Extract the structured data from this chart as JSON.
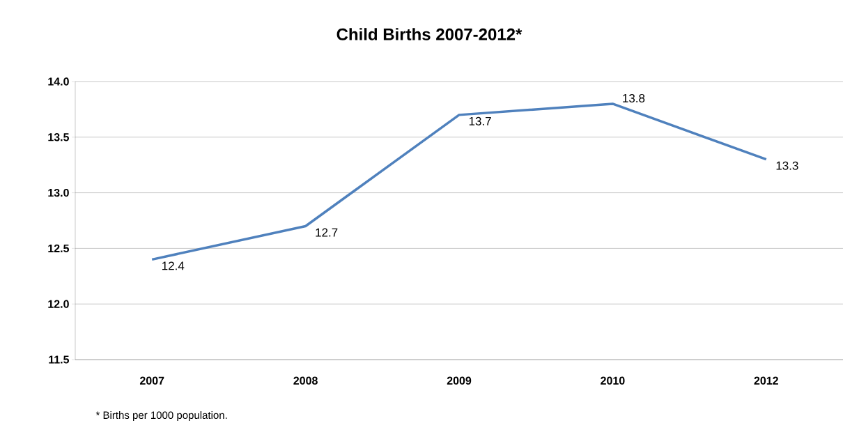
{
  "chart_data": {
    "type": "line",
    "title": "Child Births 2007-2012*",
    "categories": [
      "2007",
      "2008",
      "2009",
      "2010",
      "2012"
    ],
    "values": [
      12.4,
      12.7,
      13.7,
      13.8,
      13.3
    ],
    "color": "#4f81bd",
    "ylim": [
      11.5,
      14.0
    ],
    "yticks": [
      11.5,
      {
        "value": 12.0,
        "label": "12.0"
      },
      12.5,
      {
        "value": 13.0,
        "label": "13.0"
      },
      13.5,
      {
        "value": 14.0,
        "label": "14.0"
      }
    ],
    "grid": "y",
    "data_labels": true,
    "annotations": [
      "* Births per 1000 population."
    ]
  }
}
